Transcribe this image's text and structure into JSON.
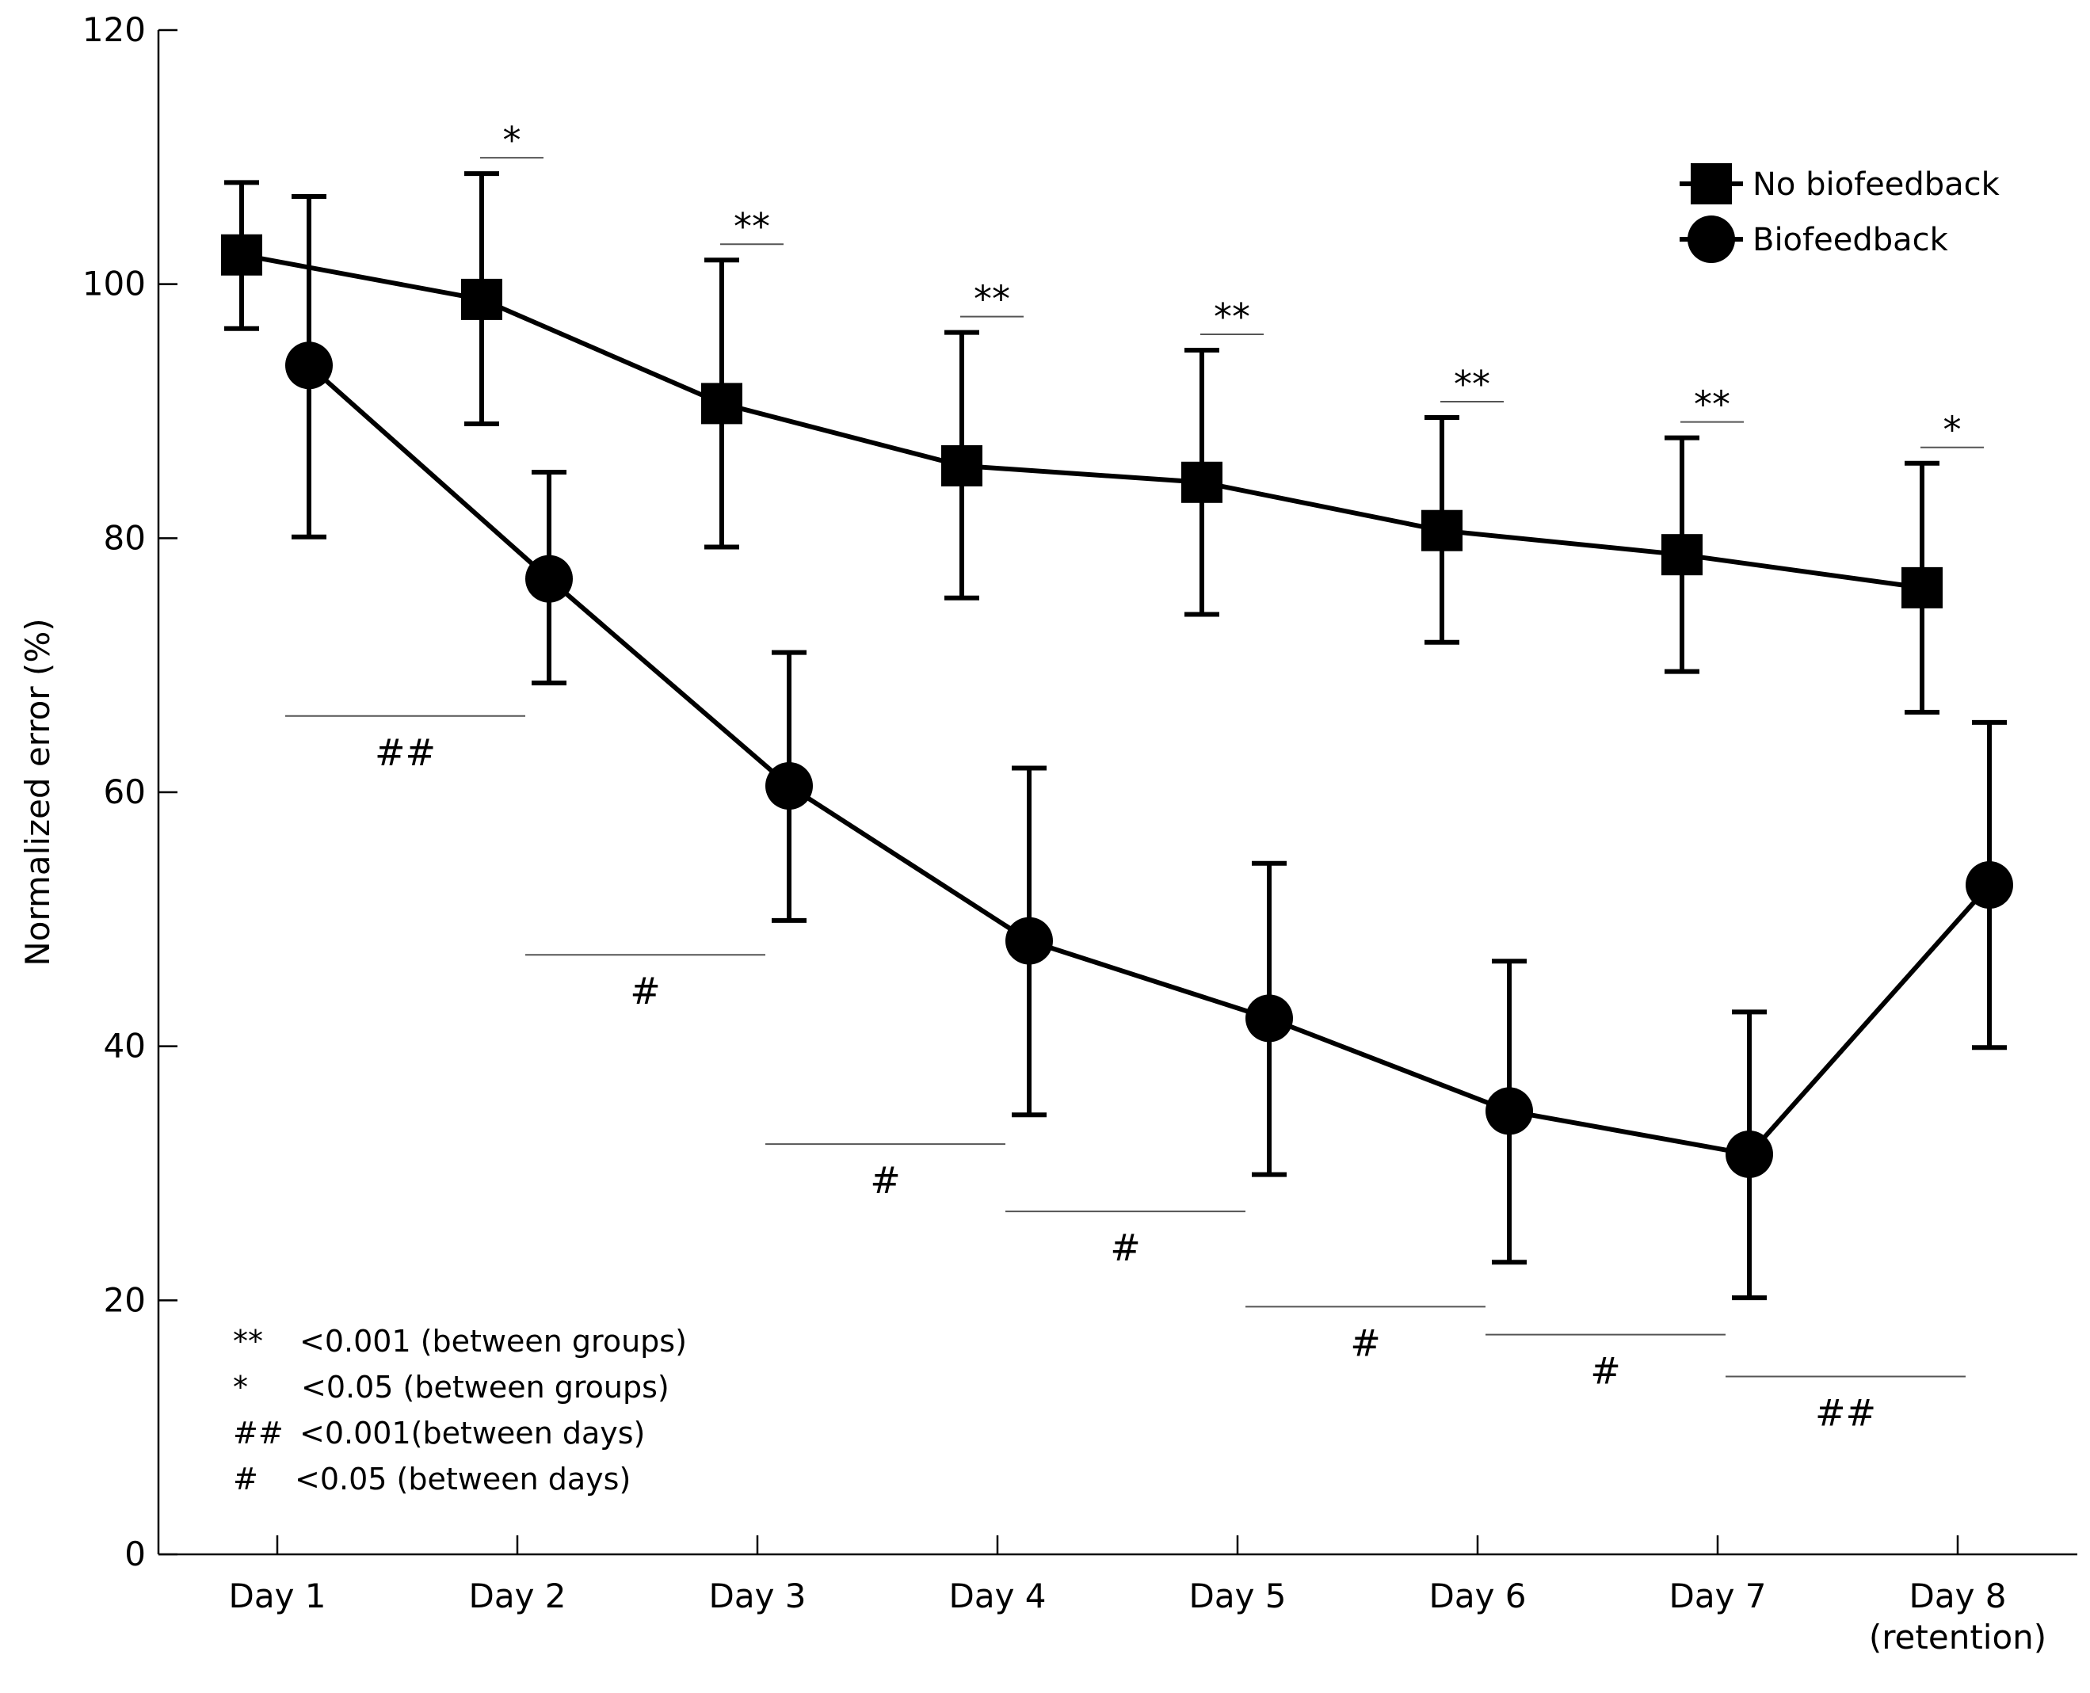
{
  "chart_data": {
    "type": "line",
    "title": "",
    "xlabel": "",
    "ylabel": "Normalized error (%)",
    "ylim": [
      0,
      120
    ],
    "yticks": [
      0,
      20,
      40,
      60,
      80,
      100,
      120
    ],
    "grid": false,
    "categories": [
      [
        "Day 1"
      ],
      [
        "Day 2"
      ],
      [
        "Day 3"
      ],
      [
        "Day 4"
      ],
      [
        "Day 5"
      ],
      [
        "Day 6"
      ],
      [
        "Day 7"
      ],
      [
        "Day 8",
        "(retention)"
      ]
    ],
    "legend_position": "top-right",
    "series": [
      {
        "name": "No biofeedback",
        "marker": "square",
        "values": [
          102.3,
          98.8,
          90.6,
          85.7,
          84.4,
          80.6,
          78.7,
          76.1
        ],
        "error_lower": [
          96.5,
          89.0,
          79.3,
          75.3,
          74.0,
          71.8,
          69.5,
          66.3
        ],
        "error_upper": [
          108.0,
          108.7,
          101.9,
          96.2,
          94.8,
          89.5,
          87.9,
          85.9
        ]
      },
      {
        "name": "Biofeedback",
        "marker": "circle",
        "values": [
          93.6,
          76.8,
          60.5,
          48.3,
          42.2,
          34.9,
          31.5,
          52.7
        ],
        "error_lower": [
          80.1,
          68.6,
          49.9,
          34.6,
          29.9,
          23.0,
          20.2,
          39.9
        ],
        "error_upper": [
          106.9,
          85.2,
          71.0,
          61.9,
          54.4,
          46.7,
          42.7,
          65.5
        ]
      }
    ],
    "between_group_marks": [
      "*",
      "**",
      "**",
      "**",
      "**",
      "**",
      "*"
    ],
    "between_day_marks": [
      "##",
      "#",
      "#",
      "#",
      "#",
      "#",
      "##"
    ],
    "significance_notes": [
      {
        "symbol": "**",
        "text": "<0.001 (between groups)"
      },
      {
        "symbol": "*",
        "text": "<0.05 (between groups)"
      },
      {
        "symbol": "##",
        "text": "<0.001(between days)"
      },
      {
        "symbol": "#",
        "text": "<0.05 (between days)"
      }
    ]
  },
  "colors": {
    "line": "#000000",
    "axis": "#000000",
    "bracket": "#555555"
  }
}
